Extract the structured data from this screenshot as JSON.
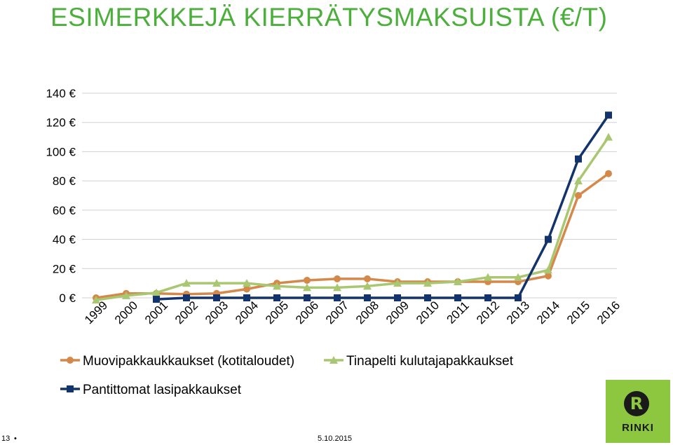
{
  "title": "ESIMERKKEJÄ KIERRÄTYSMAKSUISTA (€/T)",
  "footer": {
    "page": "13",
    "dot": "•",
    "date": "5.10.2015"
  },
  "logo": {
    "text": "RINKI"
  },
  "chart_data": {
    "type": "line",
    "categories": [
      "1999",
      "2000",
      "2001",
      "2002",
      "2003",
      "2004",
      "2005",
      "2006",
      "2007",
      "2008",
      "2009",
      "2010",
      "2011",
      "2012",
      "2013",
      "2014",
      "2015",
      "2016"
    ],
    "y_tick_labels": [
      "0 €",
      "20 €",
      "40 €",
      "60 €",
      "80 €",
      "100 €",
      "120 €",
      "140 €"
    ],
    "y_ticks": [
      0,
      20,
      40,
      60,
      80,
      100,
      120,
      140
    ],
    "ylim": [
      0,
      140
    ],
    "grid": true,
    "legend_position": "bottom",
    "series": [
      {
        "name": "Muovipakkaukkaukset (kotitaloudet)",
        "color": "#d4894a",
        "marker": "circle",
        "values": [
          0,
          3,
          3,
          2.5,
          3,
          6,
          10,
          12,
          13,
          13,
          11,
          11,
          11,
          11,
          11,
          15,
          70,
          85
        ]
      },
      {
        "name": "Tinapelti kulutajapakkaukset",
        "color": "#a9c770",
        "marker": "triangle",
        "values": [
          -1.5,
          1.5,
          3.5,
          10,
          10,
          10,
          8,
          7,
          7,
          8,
          10,
          10,
          11,
          14,
          14,
          19,
          80,
          110
        ]
      },
      {
        "name": "Pantittomat lasipakkaukset",
        "color": "#12336b",
        "marker": "square",
        "values": [
          null,
          null,
          -1,
          0,
          0,
          0,
          0,
          0,
          0,
          0,
          0,
          0,
          0,
          0,
          0,
          40,
          95,
          125
        ]
      }
    ]
  }
}
